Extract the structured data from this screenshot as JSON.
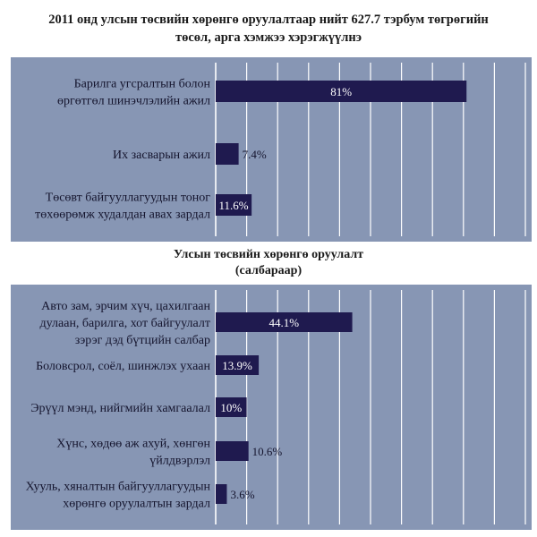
{
  "header": {
    "title_line1": "2011 онд улсын төсвийн хөрөнгө оруулалтаар нийт 627.7 тэрбум төгрөгийн",
    "title_line2": "төсөл, арга хэмжээ хэрэгжүүлнэ"
  },
  "chart2_title": {
    "line1": "Улсын төсвийн хөрөнгө оруулалт",
    "line2": "(салбараар)"
  },
  "colors": {
    "panel": "#8796b4",
    "bar": "#1f1a4f",
    "grid": "#ffffff"
  },
  "chart_data": [
    {
      "type": "bar",
      "orientation": "horizontal",
      "categories": [
        [
          "Барилга угсралтын болон",
          "өргөтгөл шинэчлэлийн ажил"
        ],
        [
          "Их засварын ажил"
        ],
        [
          "Төсөвт байгууллагуудын тоног",
          "төхөөрөмж худалдан авах зардал"
        ]
      ],
      "values": [
        81,
        7.4,
        11.6
      ],
      "value_labels": [
        "81%",
        "7.4%",
        "11.6%"
      ],
      "xlim": [
        0,
        100
      ],
      "grid": true
    },
    {
      "type": "bar",
      "orientation": "horizontal",
      "categories": [
        [
          "Авто зам, эрчим хүч, цахилгаан",
          "дулаан, барилга, хот байгуулалт",
          "зэрэг дэд бүтцийн салбар"
        ],
        [
          "Боловсрол, соёл, шинжлэх ухаан"
        ],
        [
          "Эрүүл мэнд, нийгмийн хамгаалал"
        ],
        [
          "Хүнс, хөдөө аж ахуй, хөнгөн",
          "үйлдвэрлэл"
        ],
        [
          "Хууль, хяналтын байгууллагуудын",
          "хөрөнгө оруулалтын зардал"
        ]
      ],
      "values": [
        44.1,
        13.9,
        10,
        10.6,
        3.6
      ],
      "value_labels": [
        "44.1%",
        "13.9%",
        "10%",
        "10.6%",
        "3.6%"
      ],
      "xlim": [
        0,
        100
      ],
      "grid": true
    }
  ]
}
